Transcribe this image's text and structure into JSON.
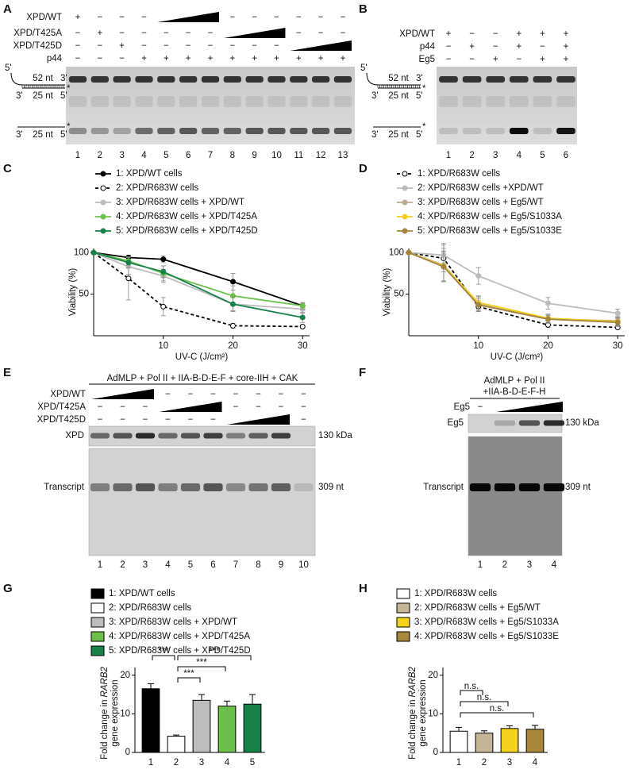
{
  "gels": [
    {
      "panel": "A",
      "rows": [
        {
          "label": "XPD/WT",
          "signs": [
            "+",
            "−",
            "−",
            "−",
            null,
            null,
            null,
            "−",
            "−",
            "−",
            "−",
            "−",
            "−"
          ]
        },
        {
          "label": "XPD/T425A",
          "signs": [
            "−",
            "+",
            "−",
            "−",
            "−",
            "−",
            "−",
            null,
            null,
            null,
            "−",
            "−",
            "−"
          ]
        },
        {
          "label": "XPD/T425D",
          "signs": [
            "−",
            "−",
            "+",
            "−",
            "−",
            "−",
            "−",
            "−",
            "−",
            "−",
            null,
            null,
            null
          ]
        },
        {
          "label": "p44",
          "signs": [
            "−",
            "−",
            "−",
            "+",
            "+",
            "+",
            "+",
            "+",
            "+",
            "+",
            "+",
            "+",
            "+"
          ]
        }
      ],
      "lanes": [
        1,
        2,
        3,
        4,
        5,
        6,
        7,
        8,
        9,
        10,
        11,
        12,
        13
      ],
      "substrate_top": [
        "5'",
        "52 nt",
        "3'",
        "3'",
        "25 nt",
        "5'",
        "*"
      ],
      "substrate_bottom": [
        "3'",
        "25 nt",
        "5'",
        "*"
      ]
    },
    {
      "panel": "B",
      "rows": [
        {
          "label": "XPD/WT",
          "signs": [
            "+",
            "−",
            "−",
            "+",
            "+",
            "+"
          ]
        },
        {
          "label": "p44",
          "signs": [
            "−",
            "+",
            "−",
            "+",
            "−",
            "+"
          ]
        },
        {
          "label": "Eg5",
          "signs": [
            "−",
            "−",
            "+",
            "−",
            "+",
            "+"
          ]
        }
      ],
      "lanes": [
        1,
        2,
        3,
        4,
        5,
        6
      ],
      "substrate_top": [
        "5'",
        "52 nt",
        "3'",
        "3'",
        "25 nt",
        "5'",
        "*"
      ],
      "substrate_bottom": [
        "3'",
        "25 nt",
        "5'",
        "*"
      ]
    },
    {
      "panel": "E",
      "title": [
        "AdMLP + Pol II + IIA-B-D-E-F + core-IIH + CAK"
      ],
      "rows": [
        {
          "label": "XPD/WT",
          "signs": [
            null,
            null,
            null,
            "−",
            "−",
            "−",
            "−",
            "−",
            "−",
            "−"
          ]
        },
        {
          "label": "XPD/T425A",
          "signs": [
            "−",
            "−",
            "−",
            null,
            null,
            null,
            "−",
            "−",
            "−",
            "−"
          ]
        },
        {
          "label": "XPD/T425D",
          "signs": [
            "−",
            "−",
            "−",
            "−",
            "−",
            "−",
            null,
            null,
            null,
            "−"
          ]
        }
      ],
      "lanes": [
        1,
        2,
        3,
        4,
        5,
        6,
        7,
        8,
        9,
        10
      ],
      "blots": [
        {
          "label": "XPD",
          "size": "130 kDa"
        },
        {
          "label": "Transcript",
          "size": "309 nt"
        }
      ]
    },
    {
      "panel": "F",
      "title": [
        "AdMLP + Pol II",
        "+IIA-B-D-E-F-H"
      ],
      "rows": [
        {
          "label": "Eg5",
          "signs": [
            "−",
            null,
            null,
            null
          ]
        }
      ],
      "lanes": [
        1,
        2,
        3,
        4
      ],
      "blots": [
        {
          "label": "Eg5",
          "size": "130 kDa"
        },
        {
          "label": "Transcript",
          "size": "309 nt"
        }
      ]
    }
  ],
  "chart_data": [
    {
      "type": "line",
      "panel": "C",
      "x": [
        0,
        5,
        10,
        20,
        30
      ],
      "xlim": [
        0,
        31
      ],
      "xticks": [
        10,
        20,
        30
      ],
      "ylim": [
        0,
        105
      ],
      "yticks": [
        50,
        100
      ],
      "x_label": "UV-C (J/cm²)",
      "y_label": "Viability (%)",
      "series": [
        {
          "name": "1: XPD/WT cells",
          "color": "#000000",
          "values": [
            100,
            94,
            92,
            65,
            36
          ],
          "errors": [
            0,
            3,
            4,
            10,
            3
          ]
        },
        {
          "name": "2: XPD/R683W cells",
          "color": "#000000",
          "marker_fill": "#ffffff",
          "line_style": "dashed",
          "values": [
            100,
            69,
            35,
            12,
            11
          ],
          "errors": [
            0,
            26,
            11,
            3,
            2
          ]
        },
        {
          "name": "3: XPD/R683W cells + XPD/WT",
          "color": "#bdbdbd",
          "values": [
            100,
            83,
            72,
            38,
            32
          ],
          "errors": [
            0,
            9,
            8,
            8,
            5
          ]
        },
        {
          "name": "4: XPD/R683W cells + XPD/T425A",
          "color": "#6cc04a",
          "values": [
            100,
            90,
            75,
            48,
            36
          ],
          "errors": [
            0,
            5,
            9,
            12,
            4
          ]
        },
        {
          "name": "5: XPD/R683W cells + XPD/T425D",
          "color": "#17814a",
          "values": [
            100,
            88,
            77,
            38,
            22
          ],
          "errors": [
            0,
            6,
            7,
            9,
            6
          ]
        }
      ]
    },
    {
      "type": "line",
      "panel": "D",
      "x": [
        0,
        5,
        10,
        20,
        30
      ],
      "xlim": [
        0,
        31
      ],
      "xticks": [
        10,
        20,
        30
      ],
      "ylim": [
        0,
        105
      ],
      "yticks": [
        50,
        100
      ],
      "x_label": "UV-C (J/cm²)",
      "y_label": "Viability (%)",
      "series": [
        {
          "name": "1: XPD/R683W cells",
          "color": "#000000",
          "marker_fill": "#ffffff",
          "line_style": "dashed",
          "values": [
            100,
            93,
            35,
            13,
            10
          ],
          "errors": [
            0,
            16,
            5,
            3,
            2
          ]
        },
        {
          "name": "2: XPD/R683W cells +XPD/WT",
          "color": "#bdbdbd",
          "values": [
            100,
            97,
            72,
            39,
            27
          ],
          "errors": [
            0,
            14,
            10,
            7,
            5
          ]
        },
        {
          "name": "3: XPD/R683W cells + Eg5/WT",
          "color": "#b9ab8c",
          "values": [
            100,
            85,
            38,
            20,
            18
          ],
          "errors": [
            0,
            20,
            9,
            5,
            5
          ]
        },
        {
          "name": "4: XPD/R683W cells + Eg5/S1033A",
          "color": "#f5cf1d",
          "values": [
            100,
            84,
            40,
            21,
            17
          ],
          "errors": [
            0,
            18,
            8,
            5,
            5
          ]
        },
        {
          "name": "5: XPD/R683W cells + Eg5/S1033E",
          "color": "#a3853a",
          "values": [
            100,
            83,
            37,
            20,
            16
          ],
          "errors": [
            0,
            18,
            8,
            4,
            5
          ]
        }
      ]
    },
    {
      "type": "bar",
      "panel": "G",
      "categories": [
        1,
        2,
        3,
        4,
        5
      ],
      "ylim": [
        0,
        22
      ],
      "yticks": [
        0,
        10,
        20
      ],
      "y_label": [
        "Fold change in",
        "RARB2",
        "gene expression"
      ],
      "series": [
        {
          "name": "1: XPD/WT cells",
          "color": "#000000"
        },
        {
          "name": "2: XPD/R683W cells",
          "color": "#ffffff"
        },
        {
          "name": "3: XPD/R683W cells + XPD/WT",
          "color": "#bdbdbd"
        },
        {
          "name": "4: XPD/R683W cells + XPD/T425A",
          "color": "#6cc04a"
        },
        {
          "name": "5: XPD/R683W cells + XPD/T425D",
          "color": "#17814a"
        }
      ],
      "values": [
        16.5,
        4.2,
        13.5,
        12,
        12.5
      ],
      "errors": [
        1.3,
        0.3,
        1.5,
        1.3,
        2.5
      ],
      "annotations": [
        {
          "from": 0,
          "to": 1,
          "label": "***"
        },
        {
          "from": 1,
          "to": 4,
          "label": "***"
        },
        {
          "from": 1,
          "to": 3,
          "label": "***"
        },
        {
          "from": 1,
          "to": 2,
          "label": "***"
        }
      ]
    },
    {
      "type": "bar",
      "panel": "H",
      "categories": [
        1,
        2,
        3,
        4
      ],
      "ylim": [
        0,
        22
      ],
      "yticks": [
        0,
        10,
        20
      ],
      "y_label": [
        "Fold change in",
        "RARB2",
        "gene expression"
      ],
      "series": [
        {
          "name": "1: XPD/R683W cells",
          "color": "#ffffff"
        },
        {
          "name": "2: XPD/R683W cells + Eg5/WT",
          "color": "#c4b596"
        },
        {
          "name": "3: XPD/R683W cells + Eg5/S1033A",
          "color": "#f5d31c"
        },
        {
          "name": "4: XPD/R683W cells + Eg5/S1033E",
          "color": "#a8863a"
        }
      ],
      "values": [
        5.5,
        5,
        6.2,
        6
      ],
      "errors": [
        1,
        0.6,
        0.7,
        1
      ],
      "annotations": [
        {
          "from": 0,
          "to": 3,
          "label": "n.s."
        },
        {
          "from": 0,
          "to": 2,
          "label": "n.s."
        },
        {
          "from": 0,
          "to": 1,
          "label": "n.s."
        }
      ]
    }
  ]
}
